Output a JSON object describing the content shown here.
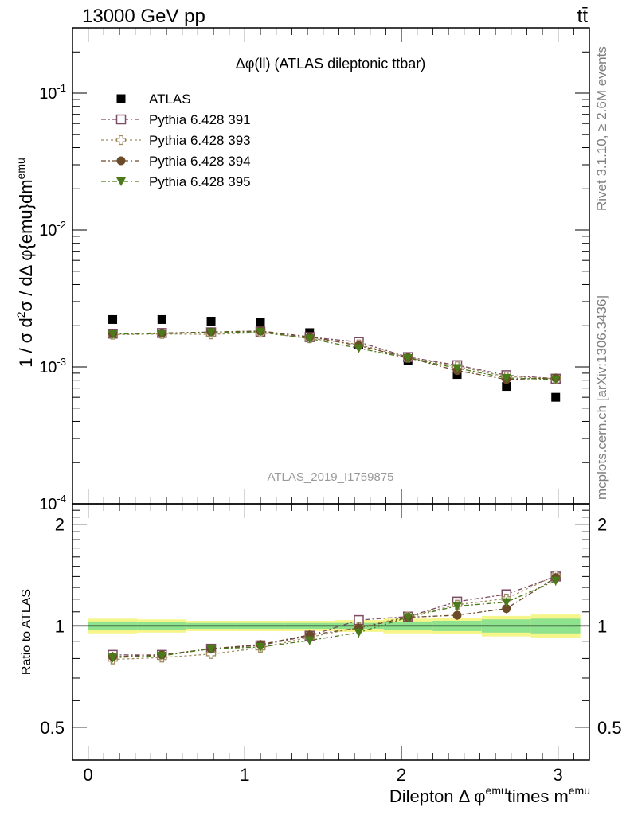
{
  "header": {
    "left": "13000 GeV pp",
    "right": "tt̄"
  },
  "side_labels": {
    "rivet": "Rivet 3.1.10, ≥ 2.6M events",
    "mcplots": "mcplots.cern.ch [arXiv:1306.3436]"
  },
  "colors": {
    "atlas": "#000000",
    "p391": "#7b4b63",
    "p393": "#a08c60",
    "p394": "#6b4a2a",
    "p395": "#4a7a1a",
    "band_inner": "#8fe38f",
    "band_outer": "#f5f58a"
  },
  "chart_data": [
    {
      "type": "scatter",
      "title": "Δφ(ll) (ATLAS dileptonic ttbar)",
      "watermark": "ATLAS_2019_I1759875",
      "ylabel": "1 / σ  d²σ / dΔ φ{emu}dm^emu",
      "yscale": "log",
      "ylim": [
        0.0001,
        0.3
      ],
      "xlim": [
        -0.1,
        3.2
      ],
      "ytick_labels": [
        "10^-4",
        "10^-3",
        "10^-2",
        "10^-1"
      ],
      "legend_position": "top-left",
      "x": [
        0.157,
        0.471,
        0.785,
        1.1,
        1.414,
        1.728,
        2.042,
        2.356,
        2.67,
        2.985
      ],
      "series": [
        {
          "name": "ATLAS",
          "marker": "square-filled",
          "values": [
            0.00222,
            0.00222,
            0.00216,
            0.00212,
            0.00178,
            0.00145,
            0.00111,
            0.00088,
            0.00072,
            0.0006
          ]
        },
        {
          "name": "Pythia 6.428 391",
          "marker": "square-open",
          "values": [
            0.00175,
            0.00177,
            0.00179,
            0.00181,
            0.00165,
            0.00152,
            0.00118,
            0.00103,
            0.00087,
            0.00082
          ]
        },
        {
          "name": "Pythia 6.428 393",
          "marker": "cross-open",
          "values": [
            0.00172,
            0.00174,
            0.00173,
            0.00178,
            0.00162,
            0.00146,
            0.00117,
            0.00101,
            0.00085,
            0.00082
          ]
        },
        {
          "name": "Pythia 6.428 394",
          "marker": "circle-filled",
          "values": [
            0.00175,
            0.00176,
            0.0018,
            0.00183,
            0.00166,
            0.00143,
            0.00117,
            0.00094,
            0.00081,
            0.00083
          ]
        },
        {
          "name": "Pythia 6.428 395",
          "marker": "triangle-down-filled",
          "values": [
            0.00174,
            0.00175,
            0.00179,
            0.0018,
            0.00161,
            0.00137,
            0.00116,
            0.00098,
            0.00083,
            0.00081
          ]
        }
      ]
    },
    {
      "type": "scatter",
      "ylabel": "Ratio to ATLAS",
      "xlabel": "Dilepton Δ φ^emu times m^emu",
      "yscale": "log",
      "ylim": [
        0.4,
        2.3
      ],
      "xlim": [
        -0.1,
        3.2
      ],
      "ytick_labels": [
        "0.5",
        "1",
        "2"
      ],
      "xtick_labels": [
        "0",
        "1",
        "2",
        "3"
      ],
      "x": [
        0.157,
        0.471,
        0.785,
        1.1,
        1.414,
        1.728,
        2.042,
        2.356,
        2.67,
        2.985
      ],
      "band_edges": [
        0.0,
        0.314,
        0.628,
        0.942,
        1.257,
        1.571,
        1.885,
        2.199,
        2.513,
        2.827,
        3.142
      ],
      "band_inner": [
        0.03,
        0.025,
        0.02,
        0.02,
        0.02,
        0.02,
        0.03,
        0.035,
        0.045,
        0.05
      ],
      "band_outer": [
        0.05,
        0.045,
        0.035,
        0.035,
        0.035,
        0.04,
        0.05,
        0.055,
        0.07,
        0.08
      ],
      "series": [
        {
          "name": "Pythia 6.428 391",
          "values": [
            0.82,
            0.82,
            0.855,
            0.875,
            0.935,
            1.04,
            1.065,
            1.18,
            1.24,
            1.4
          ]
        },
        {
          "name": "Pythia 6.428 393",
          "values": [
            0.795,
            0.805,
            0.825,
            0.86,
            0.925,
            0.99,
            1.065,
            1.155,
            1.205,
            1.41
          ]
        },
        {
          "name": "Pythia 6.428 394",
          "values": [
            0.81,
            0.82,
            0.855,
            0.88,
            0.94,
            0.985,
            1.06,
            1.075,
            1.125,
            1.39
          ]
        },
        {
          "name": "Pythia 6.428 395",
          "values": [
            0.805,
            0.815,
            0.855,
            0.865,
            0.905,
            0.955,
            1.06,
            1.145,
            1.175,
            1.36
          ]
        }
      ]
    }
  ]
}
